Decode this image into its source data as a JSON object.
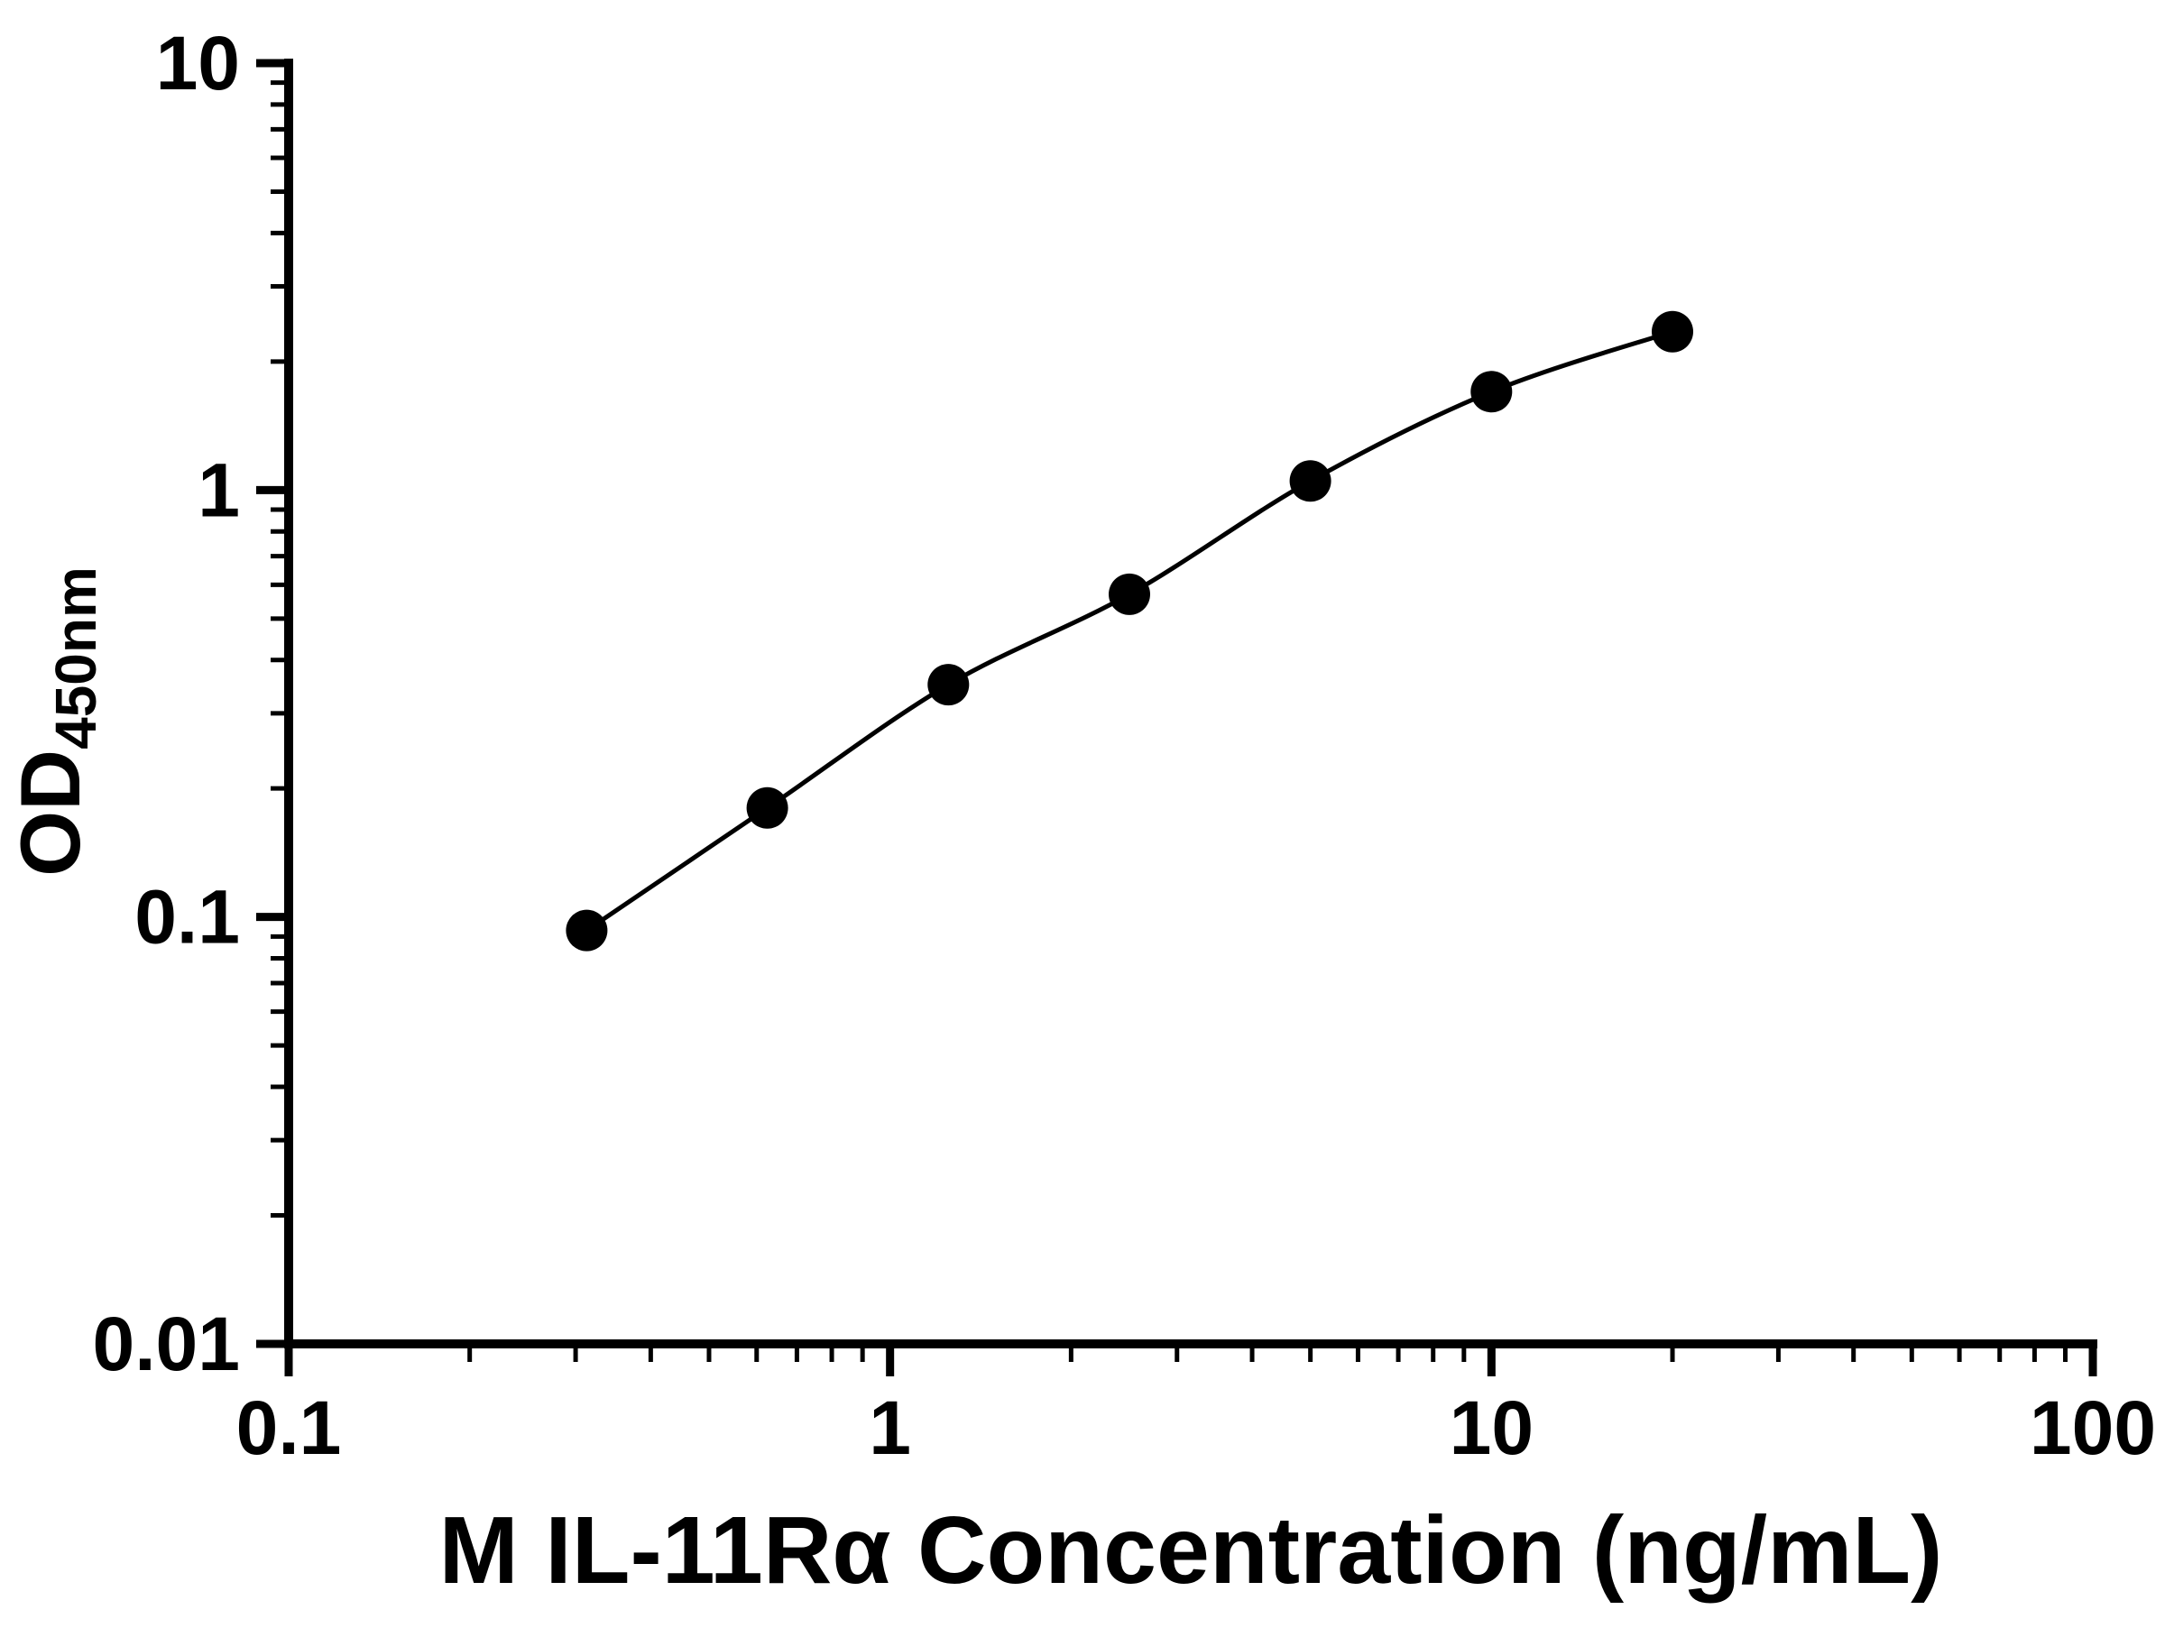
{
  "chart_data": {
    "type": "scatter",
    "title": "",
    "xlabel": "M IL-11Rα Concentration (ng/mL)",
    "ylabel_main": "OD",
    "ylabel_sub": "450nm",
    "x_scale": "log",
    "y_scale": "log",
    "xlim": [
      0.1,
      100
    ],
    "ylim": [
      0.01,
      10
    ],
    "x_ticks": [
      0.1,
      1,
      10,
      100
    ],
    "x_tick_labels": [
      "0.1",
      "1",
      "10",
      "100"
    ],
    "y_ticks": [
      0.01,
      0.1,
      1,
      10
    ],
    "y_tick_labels": [
      "0.01",
      "0.1",
      "1",
      "10"
    ],
    "x": [
      0.313,
      0.625,
      1.25,
      2.5,
      5,
      10,
      20
    ],
    "y": [
      0.093,
      0.18,
      0.35,
      0.57,
      1.05,
      1.7,
      2.35
    ],
    "fit_curve": "smooth sigmoidal (4PL-style) curve through all points",
    "marker": "filled-circle",
    "marker_color": "#000000",
    "line_color": "#000000",
    "axis_color": "#000000",
    "background": "#ffffff",
    "legend": "none",
    "grid": "off"
  }
}
